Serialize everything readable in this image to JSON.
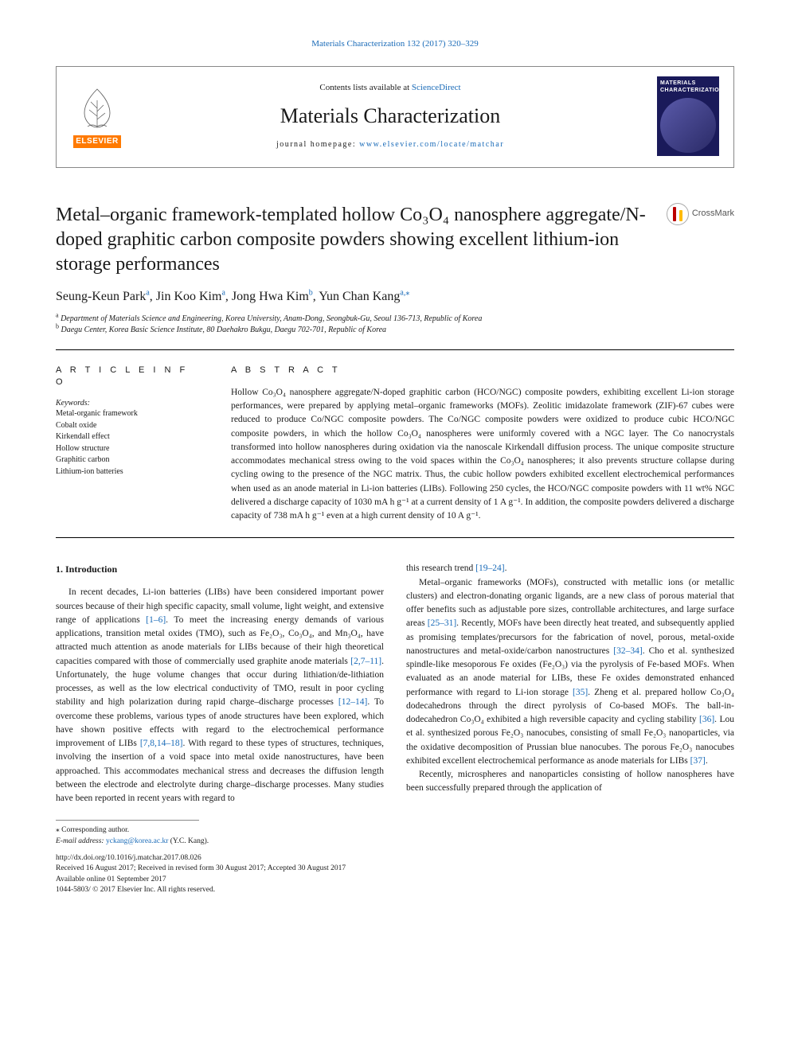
{
  "topRef": {
    "prefix": "",
    "link": "Materials Characterization 132 (2017) 320–329"
  },
  "masthead": {
    "contentsPrefix": "Contents lists available at ",
    "contentsLink": "ScienceDirect",
    "journal": "Materials Characterization",
    "homepagePrefix": "journal homepage: ",
    "homepageLink": "www.elsevier.com/locate/matchar",
    "elsevier": "ELSEVIER",
    "coverTitle": "MATERIALS CHARACTERIZATION"
  },
  "article": {
    "title": "Metal–organic framework-templated hollow Co₃O₄ nanosphere aggregate/N-doped graphitic carbon composite powders showing excellent lithium-ion storage performances",
    "crossmark": "CrossMark",
    "authorsHTML": "Seung-Keun Park<sup>a</sup>, Jin Koo Kim<sup>a</sup>, Jong Hwa Kim<sup>b</sup>, Yun Chan Kang<sup>a,</sup><sup>⁎</sup>",
    "affils": [
      {
        "sup": "a",
        "text": "Department of Materials Science and Engineering, Korea University, Anam-Dong, Seongbuk-Gu, Seoul 136-713, Republic of Korea"
      },
      {
        "sup": "b",
        "text": "Daegu Center, Korea Basic Science Institute, 80 Daehakro Bukgu, Daegu 702-701, Republic of Korea"
      }
    ]
  },
  "left": {
    "head": "A R T I C L E  I N F O",
    "kwLabel": "Keywords:",
    "keywords": [
      "Metal-organic framework",
      "Cobalt oxide",
      "Kirkendall effect",
      "Hollow structure",
      "Graphitic carbon",
      "Lithium-ion batteries"
    ]
  },
  "abstract": {
    "head": "A B S T R A C T",
    "text": "Hollow Co₃O₄ nanosphere aggregate/N-doped graphitic carbon (HCO/NGC) composite powders, exhibiting excellent Li-ion storage performances, were prepared by applying metal–organic frameworks (MOFs). Zeolitic imidazolate framework (ZIF)-67 cubes were reduced to produce Co/NGC composite powders. The Co/NGC composite powders were oxidized to produce cubic HCO/NGC composite powders, in which the hollow Co₃O₄ nanospheres were uniformly covered with a NGC layer. The Co nanocrystals transformed into hollow nanospheres during oxidation via the nanoscale Kirkendall diffusion process. The unique composite structure accommodates mechanical stress owing to the void spaces within the Co₃O₄ nanospheres; it also prevents structure collapse during cycling owing to the presence of the NGC matrix. Thus, the cubic hollow powders exhibited excellent electrochemical performances when used as an anode material in Li-ion batteries (LIBs). Following 250 cycles, the HCO/NGC composite powders with 11 wt% NGC delivered a discharge capacity of 1030 mA h g⁻¹ at a current density of 1 A g⁻¹. In addition, the composite powders delivered a discharge capacity of 738 mA h g⁻¹ even at a high current density of 10 A g⁻¹."
  },
  "body": {
    "h1": "1.  Introduction",
    "col1p1": "In recent decades, Li-ion batteries (LIBs) have been considered important power sources because of their high specific capacity, small volume, light weight, and extensive range of applications <span class=\"cite\">[1–6]</span>. To meet the increasing energy demands of various applications, transition metal oxides (TMO), such as Fe₂O₃, Co₃O₄, and Mn₃O₄, have attracted much attention as anode materials for LIBs because of their high theoretical capacities compared with those of commercially used graphite anode materials <span class=\"cite\">[2,7–11]</span>. Unfortunately, the huge volume changes that occur during lithiation/de-lithiation processes, as well as the low electrical conductivity of TMO, result in poor cycling stability and high polarization during rapid charge–discharge processes <span class=\"cite\">[12–14]</span>. To overcome these problems, various types of anode structures have been explored, which have shown positive effects with regard to the electrochemical performance improvement of LIBs <span class=\"cite\">[7,8,14–18]</span>. With regard to these types of structures, techniques, involving the insertion of a void space into metal oxide nanostructures, have been approached. This accommodates mechanical stress and decreases the diffusion length between the electrode and electrolyte during charge–discharge processes. Many studies have been reported in recent years with regard to",
    "col2p1": "this research trend <span class=\"cite\">[19–24]</span>.",
    "col2p2": "Metal–organic frameworks (MOFs), constructed with metallic ions (or metallic clusters) and electron-donating organic ligands, are a new class of porous material that offer benefits such as adjustable pore sizes, controllable architectures, and large surface areas <span class=\"cite\">[25–31]</span>. Recently, MOFs have been directly heat treated, and subsequently applied as promising templates/precursors for the fabrication of novel, porous, metal-oxide nanostructures and metal-oxide/carbon nanostructures <span class=\"cite\">[32–34]</span>. Cho et al. synthesized spindle-like mesoporous Fe oxides (Fe₂O₃) via the pyrolysis of Fe-based MOFs. When evaluated as an anode material for LIBs, these Fe oxides demonstrated enhanced performance with regard to Li-ion storage <span class=\"cite\">[35]</span>. Zheng et al. prepared hollow Co₃O₄ dodecahedrons through the direct pyrolysis of Co-based MOFs. The ball-in-dodecahedron Co₃O₄ exhibited a high reversible capacity and cycling stability <span class=\"cite\">[36]</span>. Lou et al. synthesized porous Fe₂O₃ nanocubes, consisting of small Fe₂O₃ nanoparticles, via the oxidative decomposition of Prussian blue nanocubes. The porous Fe₂O₃ nanocubes exhibited excellent electrochemical performance as anode materials for LIBs <span class=\"cite\">[37]</span>.",
    "col2p3": "Recently, microspheres and nanoparticles consisting of hollow nanospheres have been successfully prepared through the application of"
  },
  "foot": {
    "corr": "⁎ Corresponding author.",
    "emailLabel": "E-mail address: ",
    "email": "yckang@korea.ac.kr",
    "emailSuffix": " (Y.C. Kang).",
    "doi": "http://dx.doi.org/10.1016/j.matchar.2017.08.026",
    "received": "Received 16 August 2017; Received in revised form 30 August 2017; Accepted 30 August 2017",
    "available": "Available online 01 September 2017",
    "copyright": "1044-5803/ © 2017 Elsevier Inc. All rights reserved."
  }
}
